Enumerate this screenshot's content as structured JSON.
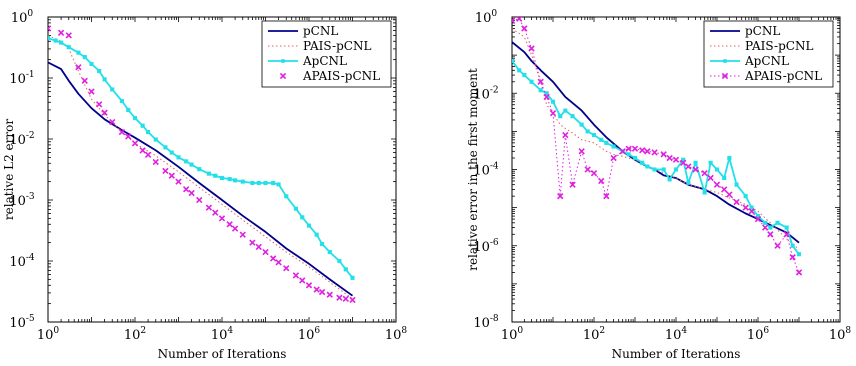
{
  "chart_data": [
    {
      "type": "line",
      "xscale": "log",
      "yscale": "log",
      "xlim": [
        1,
        100000000
      ],
      "ylim": [
        1e-05,
        1
      ],
      "xlabel": "Number of Iterations",
      "ylabel": "relative L2 error",
      "xticks": [
        {
          "value": 1,
          "base": "10",
          "exp": "0"
        },
        {
          "value": 100,
          "base": "10",
          "exp": "2"
        },
        {
          "value": 10000,
          "base": "10",
          "exp": "4"
        },
        {
          "value": 1000000,
          "base": "10",
          "exp": "6"
        },
        {
          "value": 100000000,
          "base": "10",
          "exp": "8"
        }
      ],
      "yticks": [
        {
          "value": 1e-05,
          "base": "10",
          "exp": "-5"
        },
        {
          "value": 0.0001,
          "base": "10",
          "exp": "-4"
        },
        {
          "value": 0.001,
          "base": "10",
          "exp": "-3"
        },
        {
          "value": 0.01,
          "base": "10",
          "exp": "-2"
        },
        {
          "value": 0.1,
          "base": "10",
          "exp": "-1"
        },
        {
          "value": 1,
          "base": "10",
          "exp": "0"
        }
      ],
      "legend_position": "top-right",
      "series": [
        {
          "name": "pCNL",
          "color": "#00008b",
          "style": "solid",
          "marker": "none",
          "x": [
            1,
            2,
            3,
            5,
            10,
            20,
            50,
            100,
            300,
            1000,
            3000,
            10000,
            30000,
            100000,
            300000,
            1000000,
            3000000,
            10000000
          ],
          "y": [
            0.18,
            0.14,
            0.09,
            0.055,
            0.032,
            0.021,
            0.014,
            0.0105,
            0.0065,
            0.0035,
            0.0019,
            0.001,
            0.00055,
            0.0003,
            0.00016,
            9e-05,
            5e-05,
            2.7e-05
          ]
        },
        {
          "name": "PAIS-pCNL",
          "color": "#e06060",
          "style": "dotted",
          "marker": "none",
          "x": [
            1,
            2,
            3,
            5,
            10,
            20,
            50,
            100,
            300,
            1000,
            3000,
            10000,
            30000,
            100000,
            300000,
            1000000,
            3000000,
            10000000
          ],
          "y": [
            0.5,
            0.4,
            0.3,
            0.13,
            0.045,
            0.025,
            0.013,
            0.0085,
            0.0053,
            0.0029,
            0.0016,
            0.00085,
            0.00047,
            0.00025,
            0.00014,
            8e-05,
            4.5e-05,
            2.4e-05
          ]
        },
        {
          "name": "ApCNL",
          "color": "#22e0e8",
          "style": "solid",
          "marker": "square",
          "x": [
            1,
            1.5,
            2,
            3,
            5,
            7,
            10,
            15,
            20,
            30,
            50,
            70,
            100,
            150,
            200,
            300,
            500,
            700,
            1000,
            1500,
            2000,
            3000,
            5000,
            7000,
            10000,
            15000,
            20000,
            30000,
            50000,
            70000,
            100000,
            150000,
            200000,
            300000,
            500000,
            700000,
            1000000,
            1500000,
            2000000,
            3000000,
            5000000,
            7000000,
            10000000
          ],
          "y": [
            0.45,
            0.41,
            0.38,
            0.32,
            0.26,
            0.22,
            0.17,
            0.13,
            0.095,
            0.065,
            0.042,
            0.03,
            0.022,
            0.0165,
            0.013,
            0.0098,
            0.0073,
            0.006,
            0.005,
            0.0043,
            0.0038,
            0.0032,
            0.0027,
            0.0025,
            0.0023,
            0.0022,
            0.0021,
            0.002,
            0.0019,
            0.0019,
            0.0019,
            0.0019,
            0.0018,
            0.00115,
            0.00072,
            0.00052,
            0.00038,
            0.00027,
            0.00019,
            0.00014,
            0.0001,
            7.3e-05,
            5.3e-05
          ]
        },
        {
          "name": "APAIS-pCNL",
          "color": "#e020e0",
          "style": "none",
          "marker": "x",
          "x": [
            1,
            2,
            3,
            5,
            7,
            10,
            15,
            20,
            30,
            50,
            70,
            100,
            150,
            200,
            300,
            500,
            700,
            1000,
            1500,
            2000,
            3000,
            5000,
            7000,
            10000,
            15000,
            20000,
            30000,
            50000,
            70000,
            100000,
            150000,
            200000,
            300000,
            500000,
            700000,
            1000000,
            1500000,
            2000000,
            3000000,
            5000000,
            7000000,
            10000000
          ],
          "y": [
            0.65,
            0.55,
            0.5,
            0.15,
            0.09,
            0.06,
            0.037,
            0.027,
            0.019,
            0.013,
            0.011,
            0.0085,
            0.0065,
            0.0055,
            0.0042,
            0.003,
            0.0025,
            0.002,
            0.0015,
            0.0013,
            0.001,
            0.00075,
            0.00062,
            0.0005,
            0.0004,
            0.00034,
            0.00027,
            0.0002,
            0.00017,
            0.00014,
            0.00011,
            9.5e-05,
            7.6e-05,
            5.8e-05,
            4.8e-05,
            4e-05,
            3.4e-05,
            3.1e-05,
            2.8e-05,
            2.5e-05,
            2.4e-05,
            2.3e-05
          ]
        }
      ]
    },
    {
      "type": "line",
      "xscale": "log",
      "yscale": "log",
      "xlim": [
        1,
        100000000
      ],
      "ylim": [
        1e-08,
        1
      ],
      "xlabel": "Number of Iterations",
      "ylabel": "relative error in the first moment",
      "xticks": [
        {
          "value": 1,
          "base": "10",
          "exp": "0"
        },
        {
          "value": 100,
          "base": "10",
          "exp": "2"
        },
        {
          "value": 10000,
          "base": "10",
          "exp": "4"
        },
        {
          "value": 1000000,
          "base": "10",
          "exp": "6"
        },
        {
          "value": 100000000,
          "base": "10",
          "exp": "8"
        }
      ],
      "yticks": [
        {
          "value": 1e-08,
          "base": "10",
          "exp": "-8"
        },
        {
          "value": 1e-06,
          "base": "10",
          "exp": "-6"
        },
        {
          "value": 0.0001,
          "base": "10",
          "exp": "-4"
        },
        {
          "value": 0.01,
          "base": "10",
          "exp": "-2"
        },
        {
          "value": 1,
          "base": "10",
          "exp": "0"
        }
      ],
      "legend_position": "top-right",
      "series": [
        {
          "name": "pCNL",
          "color": "#00008b",
          "style": "solid",
          "marker": "none",
          "x": [
            1,
            2,
            3,
            5,
            10,
            20,
            50,
            100,
            200,
            500,
            1000,
            2000,
            3000,
            5000,
            10000,
            20000,
            50000,
            100000,
            200000,
            500000,
            1000000,
            2000000,
            5000000,
            10000000
          ],
          "y": [
            0.22,
            0.12,
            0.07,
            0.04,
            0.02,
            0.008,
            0.0035,
            0.0015,
            0.0007,
            0.0003,
            0.00018,
            0.00012,
            0.0001,
            7e-05,
            6e-05,
            4e-05,
            3e-05,
            2e-05,
            1.2e-05,
            7e-06,
            5e-06,
            3.5e-06,
            2.2e-06,
            1.2e-06
          ]
        },
        {
          "name": "PAIS-pCNL",
          "color": "#e06060",
          "style": "dotted",
          "marker": "none",
          "x": [
            1,
            2,
            3,
            5,
            7,
            10,
            15,
            20,
            30,
            50,
            100,
            200,
            300,
            500,
            1000,
            2000,
            3000,
            5000,
            10000,
            20000,
            50000,
            100000,
            200000,
            500000,
            1000000,
            2000000,
            5000000,
            10000000
          ],
          "y": [
            0.5,
            0.3,
            0.1,
            0.02,
            0.005,
            0.003,
            0.0015,
            0.0012,
            0.0009,
            0.0006,
            0.0005,
            0.0003,
            0.00025,
            0.00022,
            0.00018,
            0.00012,
            0.0001,
            8e-05,
            6e-05,
            4e-05,
            3e-05,
            2.5e-05,
            1.8e-05,
            1.2e-05,
            8e-06,
            4e-06,
            1.5e-06,
            8e-07
          ]
        },
        {
          "name": "ApCNL",
          "color": "#22e0e8",
          "style": "solid",
          "marker": "square",
          "x": [
            1,
            1.5,
            2,
            3,
            5,
            7,
            10,
            15,
            20,
            30,
            50,
            70,
            100,
            150,
            200,
            300,
            500,
            700,
            1000,
            1500,
            2000,
            3000,
            5000,
            7000,
            10000,
            15000,
            20000,
            30000,
            50000,
            70000,
            100000,
            150000,
            200000,
            300000,
            500000,
            700000,
            1000000,
            1500000,
            2000000,
            3000000,
            5000000,
            7000000,
            10000000
          ],
          "y": [
            0.07,
            0.04,
            0.03,
            0.02,
            0.012,
            0.01,
            0.006,
            0.0025,
            0.0035,
            0.0025,
            0.0015,
            0.001,
            0.0008,
            0.0006,
            0.0005,
            0.0004,
            0.0003,
            0.00025,
            0.0002,
            0.00015,
            0.00012,
            0.0001,
            0.0001,
            5.5e-05,
            0.0001,
            0.00018,
            4.5e-05,
            0.00015,
            2.5e-05,
            0.00015,
            0.0001,
            6e-05,
            0.0002,
            4e-05,
            2e-05,
            1e-05,
            6e-06,
            4e-06,
            3e-06,
            4e-06,
            3e-06,
            1e-06,
            6e-07
          ]
        },
        {
          "name": "APAIS-pCNL",
          "color": "#e020e0",
          "style": "dotted",
          "marker": "x",
          "x": [
            1,
            1.5,
            2,
            3,
            5,
            7,
            10,
            15,
            20,
            30,
            50,
            70,
            100,
            150,
            200,
            300,
            500,
            700,
            1000,
            1500,
            2000,
            3000,
            5000,
            7000,
            10000,
            15000,
            20000,
            30000,
            50000,
            70000,
            100000,
            150000,
            200000,
            300000,
            500000,
            700000,
            1000000,
            1500000,
            2000000,
            3000000,
            5000000,
            7000000,
            10000000
          ],
          "y": [
            0.8,
            0.9,
            0.5,
            0.15,
            0.02,
            0.008,
            0.003,
            2e-05,
            0.0008,
            4e-05,
            0.0003,
            0.0001,
            8e-05,
            5e-05,
            2e-05,
            0.0002,
            0.0003,
            0.00035,
            0.00035,
            0.00032,
            0.0003,
            0.00028,
            0.00025,
            0.0002,
            0.00018,
            0.00015,
            0.00012,
            0.0001,
            8e-05,
            6e-05,
            4e-05,
            3e-05,
            2.2e-05,
            1.4e-05,
            1e-05,
            8e-06,
            5e-06,
            3e-06,
            2e-06,
            1e-06,
            2e-06,
            5e-07,
            2e-07
          ]
        }
      ]
    }
  ]
}
